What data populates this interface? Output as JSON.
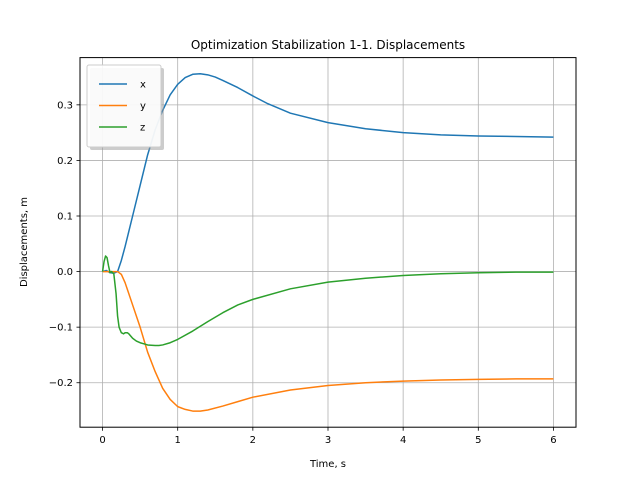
{
  "chart_data": {
    "type": "line",
    "title": "Optimization Stabilization 1-1. Displacements",
    "xlabel": "Time, s",
    "ylabel": "Displacements, m",
    "xlim": [
      -0.3,
      6.3
    ],
    "ylim": [
      -0.28,
      0.385
    ],
    "xticks": [
      0,
      1,
      2,
      3,
      4,
      5,
      6
    ],
    "yticks": [
      -0.2,
      -0.1,
      0.0,
      0.1,
      0.2,
      0.3
    ],
    "xtick_labels": [
      "0",
      "1",
      "2",
      "3",
      "4",
      "5",
      "6"
    ],
    "ytick_labels": [
      "−0.2",
      "−0.1",
      "0.0",
      "0.1",
      "0.2",
      "0.3"
    ],
    "grid": true,
    "legend": "upper-left",
    "series": [
      {
        "name": "x",
        "color": "#1f77b4",
        "x": [
          0,
          0.05,
          0.1,
          0.15,
          0.2,
          0.25,
          0.3,
          0.4,
          0.5,
          0.6,
          0.7,
          0.8,
          0.9,
          1.0,
          1.1,
          1.2,
          1.3,
          1.4,
          1.5,
          1.6,
          1.8,
          2.0,
          2.2,
          2.5,
          3.0,
          3.5,
          4.0,
          4.5,
          5.0,
          5.5,
          6.0
        ],
        "y": [
          0.0,
          0.002,
          -0.002,
          -0.003,
          0.0,
          0.02,
          0.045,
          0.1,
          0.155,
          0.21,
          0.255,
          0.29,
          0.318,
          0.337,
          0.349,
          0.355,
          0.356,
          0.354,
          0.35,
          0.344,
          0.331,
          0.316,
          0.302,
          0.285,
          0.268,
          0.257,
          0.25,
          0.246,
          0.244,
          0.243,
          0.242
        ]
      },
      {
        "name": "y",
        "color": "#ff7f0e",
        "x": [
          0,
          0.1,
          0.2,
          0.25,
          0.3,
          0.4,
          0.5,
          0.6,
          0.7,
          0.8,
          0.9,
          1.0,
          1.1,
          1.2,
          1.3,
          1.4,
          1.6,
          1.8,
          2.0,
          2.5,
          3.0,
          3.5,
          4.0,
          4.5,
          5.0,
          5.5,
          6.0
        ],
        "y": [
          0.0,
          0.0,
          0.0,
          -0.005,
          -0.02,
          -0.06,
          -0.1,
          -0.145,
          -0.18,
          -0.21,
          -0.23,
          -0.243,
          -0.248,
          -0.251,
          -0.251,
          -0.249,
          -0.242,
          -0.234,
          -0.226,
          -0.213,
          -0.205,
          -0.2,
          -0.197,
          -0.195,
          -0.194,
          -0.193,
          -0.193
        ]
      },
      {
        "name": "z",
        "color": "#2ca02c",
        "x": [
          0,
          0.02,
          0.04,
          0.06,
          0.08,
          0.1,
          0.12,
          0.15,
          0.18,
          0.2,
          0.22,
          0.25,
          0.28,
          0.3,
          0.33,
          0.35,
          0.4,
          0.45,
          0.5,
          0.55,
          0.6,
          0.7,
          0.75,
          0.8,
          0.9,
          1.0,
          1.2,
          1.4,
          1.6,
          1.8,
          2.0,
          2.5,
          3.0,
          3.5,
          4.0,
          4.5,
          5.0,
          5.5,
          6.0
        ],
        "y": [
          0.0,
          0.018,
          0.028,
          0.025,
          0.01,
          -0.002,
          0.0,
          -0.004,
          -0.04,
          -0.08,
          -0.1,
          -0.11,
          -0.112,
          -0.11,
          -0.11,
          -0.112,
          -0.12,
          -0.125,
          -0.128,
          -0.13,
          -0.132,
          -0.133,
          -0.133,
          -0.132,
          -0.128,
          -0.122,
          -0.107,
          -0.09,
          -0.074,
          -0.06,
          -0.05,
          -0.031,
          -0.019,
          -0.012,
          -0.007,
          -0.004,
          -0.002,
          -0.001,
          -0.001
        ]
      }
    ]
  }
}
